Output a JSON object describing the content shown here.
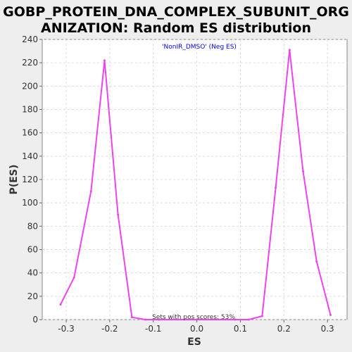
{
  "chart_data": {
    "type": "line",
    "title_lines": [
      "GOBP_PROTEIN_DNA_COMPLEX_SUBUNIT_ORG",
      "ANIZATION: Random ES distribution"
    ],
    "xlabel": "ES",
    "ylabel": "P(ES)",
    "xlim": [
      -0.355,
      0.345
    ],
    "ylim": [
      0,
      240
    ],
    "x_ticks": [
      -0.3,
      -0.2,
      -0.1,
      0.0,
      0.1,
      0.2,
      0.3
    ],
    "x_tick_labels": [
      "-0.3",
      "-0.2",
      "-0.1",
      "0.0",
      "0.1",
      "0.2",
      "0.3"
    ],
    "y_ticks": [
      0,
      20,
      40,
      60,
      80,
      100,
      120,
      140,
      160,
      180,
      200,
      220,
      240
    ],
    "y_tick_labels": [
      "0",
      "20",
      "40",
      "60",
      "80",
      "100",
      "120",
      "140",
      "160",
      "180",
      "200",
      "220",
      "240"
    ],
    "grid": true,
    "legend_position": "top-center",
    "series": [
      {
        "name": "'NonIR_DMSO' (Neg ES)",
        "color": "#ee44ee",
        "x": [
          -0.313,
          -0.282,
          -0.243,
          -0.212,
          -0.181,
          -0.149,
          -0.118,
          -0.087,
          0.088,
          0.119,
          0.15,
          0.181,
          0.213,
          0.244,
          0.275,
          0.307
        ],
        "y": [
          13,
          36,
          110,
          222,
          90,
          2,
          0,
          0,
          0,
          0,
          3,
          113,
          231,
          127,
          50,
          4
        ]
      }
    ],
    "annotation": "Sets with pos scores: 53%",
    "colors": {
      "background": "#eeeeee",
      "plot_background": "#ffffff",
      "grid": "#dddddd",
      "legend_text": "#0000ff"
    }
  }
}
